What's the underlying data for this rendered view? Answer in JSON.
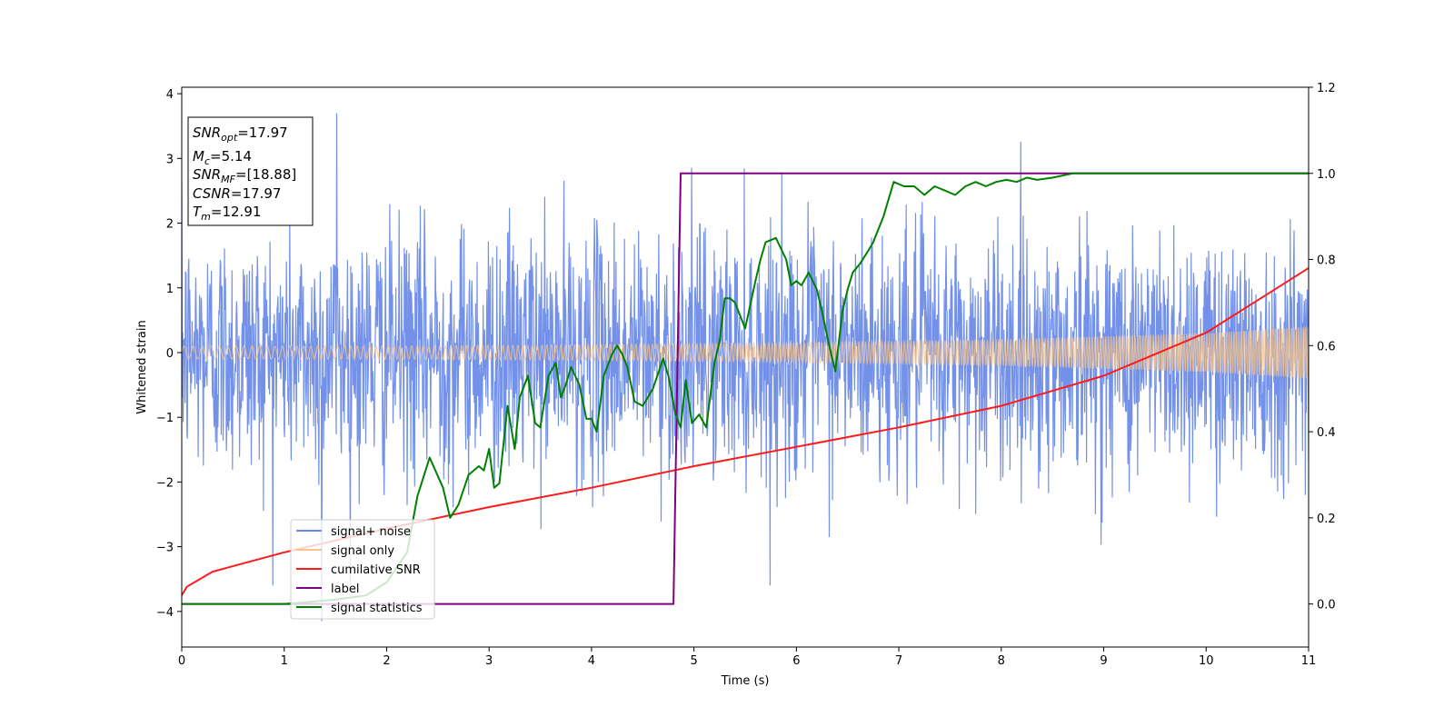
{
  "chart_data": {
    "type": "line",
    "title": "",
    "xlabel": "Time (s)",
    "ylabel": "Whitened strain",
    "y2label": "",
    "xlim": [
      0,
      11
    ],
    "ylim": [
      -4.55,
      4.1
    ],
    "y2lim": [
      -0.1,
      1.2
    ],
    "xticks": [
      "0",
      "1",
      "2",
      "3",
      "4",
      "5",
      "6",
      "7",
      "8",
      "9",
      "10",
      "11"
    ],
    "yticks": [
      "−4",
      "−3",
      "−2",
      "−1",
      "0",
      "1",
      "2",
      "3",
      "4"
    ],
    "y2ticks": [
      "0.0",
      "0.2",
      "0.4",
      "0.6",
      "0.8",
      "1.0",
      "1.2"
    ],
    "grid": false,
    "legend_position": "lower-left",
    "colors": {
      "signal_noise": "#6b8be8",
      "signal_only": "#f7c48a",
      "cumulative_snr": "#ff1a1a",
      "label": "#800080",
      "signal_statistics": "#008000"
    },
    "series": [
      {
        "name": "signal+ noise",
        "axis": "left",
        "description_style": "noisy strain",
        "amplitude_envelope": 1.5,
        "peaks": {
          "max": 3.7,
          "min": -4.15
        }
      },
      {
        "name": "signal only",
        "axis": "left",
        "envelope": {
          "t": [
            0,
            2,
            4,
            6,
            8,
            10,
            11
          ],
          "amp": [
            0.1,
            0.1,
            0.12,
            0.15,
            0.2,
            0.3,
            0.4
          ]
        }
      },
      {
        "name": "cumilative SNR",
        "axis": "right",
        "x": [
          0,
          0.05,
          0.3,
          1,
          2,
          3,
          4,
          5,
          6,
          7,
          8,
          9,
          10,
          11
        ],
        "y": [
          0.02,
          0.04,
          0.075,
          0.12,
          0.175,
          0.225,
          0.27,
          0.32,
          0.365,
          0.41,
          0.46,
          0.53,
          0.63,
          0.78
        ]
      },
      {
        "name": "label",
        "axis": "right",
        "x": [
          0,
          4.8,
          4.87,
          11
        ],
        "y": [
          0,
          0,
          1,
          1
        ]
      },
      {
        "name": "signal statistics",
        "axis": "right",
        "x": [
          0,
          1,
          1.5,
          1.8,
          2.0,
          2.2,
          2.3,
          2.42,
          2.55,
          2.62,
          2.7,
          2.8,
          2.9,
          2.95,
          3.0,
          3.05,
          3.1,
          3.18,
          3.25,
          3.3,
          3.38,
          3.45,
          3.5,
          3.58,
          3.65,
          3.7,
          3.75,
          3.8,
          3.88,
          3.95,
          4.0,
          4.05,
          4.12,
          4.2,
          4.25,
          4.3,
          4.35,
          4.42,
          4.5,
          4.6,
          4.7,
          4.75,
          4.82,
          4.87,
          4.92,
          4.98,
          5.05,
          5.12,
          5.2,
          5.25,
          5.3,
          5.35,
          5.4,
          5.5,
          5.6,
          5.65,
          5.7,
          5.8,
          5.9,
          5.95,
          6.0,
          6.05,
          6.12,
          6.2,
          6.25,
          6.32,
          6.38,
          6.45,
          6.5,
          6.55,
          6.62,
          6.7,
          6.75,
          6.8,
          6.85,
          6.9,
          6.95,
          7.05,
          7.15,
          7.25,
          7.35,
          7.45,
          7.55,
          7.65,
          7.75,
          7.85,
          7.95,
          8.05,
          8.15,
          8.25,
          8.35,
          8.5,
          8.7,
          9.0,
          9.5,
          10.0,
          11.0
        ],
        "y": [
          0.0,
          0.0,
          0.01,
          0.02,
          0.05,
          0.12,
          0.25,
          0.34,
          0.27,
          0.2,
          0.23,
          0.3,
          0.32,
          0.31,
          0.36,
          0.27,
          0.28,
          0.46,
          0.36,
          0.48,
          0.53,
          0.42,
          0.41,
          0.53,
          0.56,
          0.48,
          0.51,
          0.55,
          0.51,
          0.43,
          0.43,
          0.4,
          0.53,
          0.58,
          0.6,
          0.58,
          0.55,
          0.47,
          0.46,
          0.5,
          0.57,
          0.53,
          0.44,
          0.41,
          0.52,
          0.42,
          0.44,
          0.41,
          0.56,
          0.61,
          0.71,
          0.71,
          0.7,
          0.64,
          0.75,
          0.8,
          0.84,
          0.85,
          0.8,
          0.74,
          0.75,
          0.74,
          0.77,
          0.73,
          0.68,
          0.6,
          0.54,
          0.68,
          0.73,
          0.77,
          0.79,
          0.82,
          0.84,
          0.87,
          0.9,
          0.94,
          0.98,
          0.97,
          0.97,
          0.95,
          0.97,
          0.96,
          0.95,
          0.97,
          0.98,
          0.97,
          0.98,
          0.985,
          0.98,
          0.99,
          0.985,
          0.99,
          1.0,
          1.0,
          1.0,
          1.0,
          1.0
        ]
      }
    ],
    "annotation": {
      "line1_sym": "SNR",
      "line1_sub": "opt",
      "line1_val": "=17.97",
      "line2_sym": "M",
      "line2_sub": "c",
      "line2_val": "=5.14",
      "line3_sym": "SNR",
      "line3_sub": "MF",
      "line3_val": "=[18.88]",
      "line4_sym": "CSNR",
      "line4_val": "=17.97",
      "line5_sym": "T",
      "line5_sub": "m",
      "line5_val": "=12.91"
    }
  }
}
